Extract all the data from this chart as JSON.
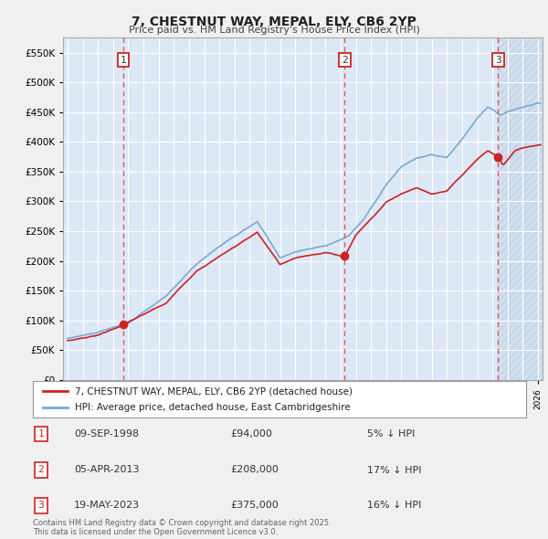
{
  "title": "7, CHESTNUT WAY, MEPAL, ELY, CB6 2YP",
  "subtitle": "Price paid vs. HM Land Registry's House Price Index (HPI)",
  "ylim": [
    0,
    575000
  ],
  "yticks": [
    0,
    50000,
    100000,
    150000,
    200000,
    250000,
    300000,
    350000,
    400000,
    450000,
    500000,
    550000
  ],
  "xlim_start": 1994.7,
  "xlim_end": 2026.3,
  "background_color": "#f0f0f0",
  "plot_bg_color": "#dce8f5",
  "grid_color": "#ffffff",
  "sale_events": [
    {
      "date_num": 1998.69,
      "price": 94000,
      "label": "1"
    },
    {
      "date_num": 2013.26,
      "price": 208000,
      "label": "2"
    },
    {
      "date_num": 2023.38,
      "price": 375000,
      "label": "3"
    }
  ],
  "legend_property_label": "7, CHESTNUT WAY, MEPAL, ELY, CB6 2YP (detached house)",
  "legend_hpi_label": "HPI: Average price, detached house, East Cambridgeshire",
  "table_rows": [
    {
      "num": "1",
      "date": "09-SEP-1998",
      "price": "£94,000",
      "note": "5% ↓ HPI"
    },
    {
      "num": "2",
      "date": "05-APR-2013",
      "price": "£208,000",
      "note": "17% ↓ HPI"
    },
    {
      "num": "3",
      "date": "19-MAY-2023",
      "price": "£375,000",
      "note": "16% ↓ HPI"
    }
  ],
  "footer": "Contains HM Land Registry data © Crown copyright and database right 2025.\nThis data is licensed under the Open Government Licence v3.0.",
  "property_line_color": "#cc2222",
  "hpi_line_color": "#7aaad0",
  "vline_color": "#ee4444",
  "label_box_edge_color": "#cc2222",
  "label_text_color": "#333333",
  "dot_color": "#cc2222"
}
